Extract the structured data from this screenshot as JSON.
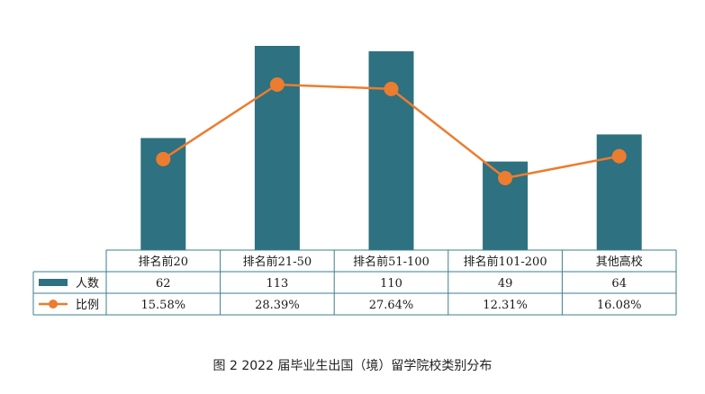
{
  "colors": {
    "bar": "#2e7180",
    "line": "#ec7c2f",
    "grid": "#3a7f8c"
  },
  "chart_data": {
    "type": "bar",
    "categories": [
      "排名前20",
      "排名前21-50",
      "排名前51-100",
      "排名前101-200",
      "其他高校"
    ],
    "series": [
      {
        "name": "人数",
        "type": "bar",
        "values": [
          62,
          113,
          110,
          49,
          64
        ],
        "labels": [
          "62",
          "113",
          "110",
          "49",
          "64"
        ]
      },
      {
        "name": "比例",
        "type": "line",
        "values": [
          15.58,
          28.39,
          27.64,
          12.31,
          16.08
        ],
        "labels": [
          "15.58%",
          "28.39%",
          "27.64%",
          "12.31%",
          "16.08%"
        ]
      }
    ],
    "title": "",
    "caption": "图 2  2022 届毕业生出国（境）留学院校类别分布",
    "legend": "data-table"
  }
}
